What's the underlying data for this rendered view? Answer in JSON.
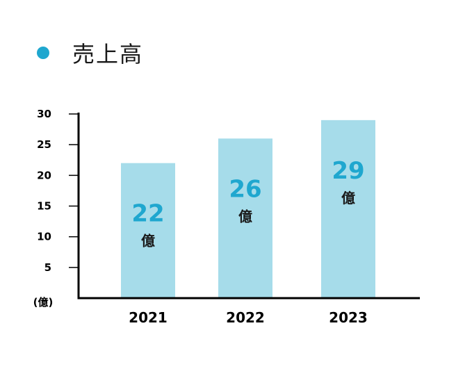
{
  "chart_data": {
    "type": "bar",
    "title": "売上高",
    "categories": [
      "2021",
      "2022",
      "2023"
    ],
    "values": [
      22,
      26,
      29
    ],
    "value_unit": "億",
    "ylabel": "(億)",
    "yticks": [
      5,
      10,
      15,
      20,
      25,
      30
    ],
    "ylim": [
      0,
      30
    ],
    "grid": false,
    "legend": "none"
  },
  "colors": {
    "accent": "#1fa7cf",
    "bar": "#a6dcea",
    "axis": "#000000"
  }
}
